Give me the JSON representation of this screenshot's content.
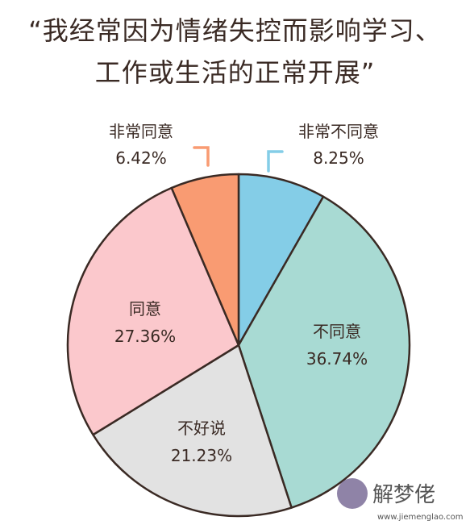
{
  "title": {
    "line1": "“我经常因为情绪失控而影响学习、",
    "line2": "工作或生活的正常开展”"
  },
  "chart_data": {
    "type": "pie",
    "unit": "%",
    "slices": [
      {
        "label": "非常不同意",
        "value": 8.25,
        "display": "8.25%",
        "color": "#84cde7"
      },
      {
        "label": "不同意",
        "value": 36.74,
        "display": "36.74%",
        "color": "#a8dad3"
      },
      {
        "label": "不好说",
        "value": 21.23,
        "display": "21.23%",
        "color": "#e2e2e2"
      },
      {
        "label": "同意",
        "value": 27.36,
        "display": "27.36%",
        "color": "#fbc8cc"
      },
      {
        "label": "非常同意",
        "value": 6.42,
        "display": "6.42%",
        "color": "#f99b72"
      }
    ],
    "start": "12 o'clock",
    "direction": "clockwise"
  },
  "watermark": {
    "text": "解梦佬",
    "url": "www.jiemenglao.com"
  }
}
